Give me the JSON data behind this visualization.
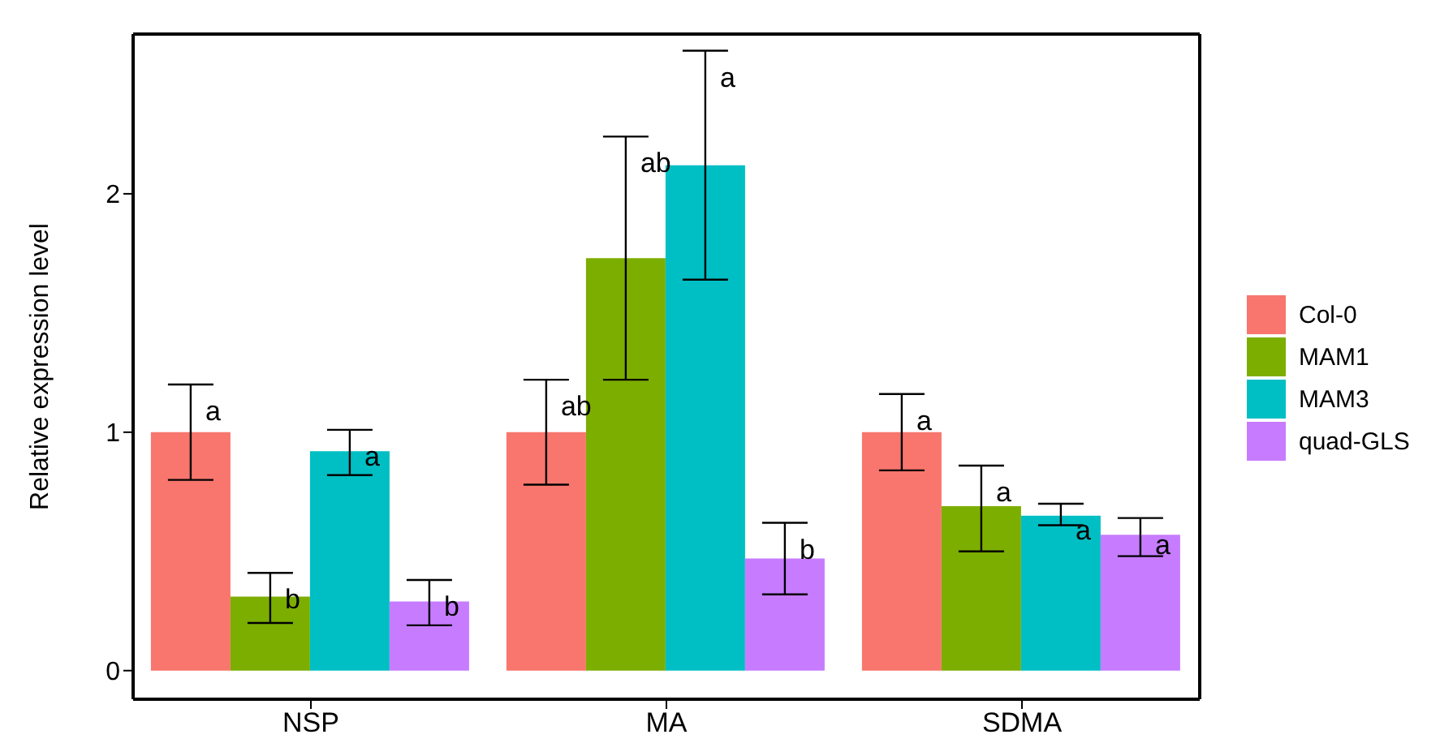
{
  "chart_data": {
    "type": "bar",
    "ylabel": "Relative expression level",
    "categories": [
      "NSP",
      "MA",
      "SDMA"
    ],
    "series": [
      {
        "name": "Col-0",
        "color": "#f8766d",
        "values": [
          1.0,
          1.0,
          1.0
        ],
        "errors": [
          [
            0.8,
            1.2
          ],
          [
            0.78,
            1.22
          ],
          [
            0.84,
            1.16
          ]
        ],
        "value_labels": [
          "a",
          "ab",
          "a"
        ]
      },
      {
        "name": "MAM1",
        "color": "#7cae00",
        "values": [
          0.31,
          1.73,
          0.69
        ],
        "errors": [
          [
            0.2,
            0.41
          ],
          [
            1.22,
            2.24
          ],
          [
            0.5,
            0.86
          ]
        ],
        "value_labels": [
          "b",
          "ab",
          "a"
        ]
      },
      {
        "name": "MAM3",
        "color": "#00bfc4",
        "values": [
          0.92,
          2.12,
          0.65
        ],
        "errors": [
          [
            0.82,
            1.01
          ],
          [
            1.64,
            2.6
          ],
          [
            0.61,
            0.7
          ]
        ],
        "value_labels": [
          "a",
          "a",
          "a"
        ]
      },
      {
        "name": "quad-GLS",
        "color": "#c77cff",
        "values": [
          0.29,
          0.47,
          0.57
        ],
        "errors": [
          [
            0.19,
            0.38
          ],
          [
            0.32,
            0.62
          ],
          [
            0.48,
            0.64
          ]
        ],
        "value_labels": [
          "b",
          "b",
          "a"
        ]
      }
    ],
    "ylim": [
      -0.12,
      2.67
    ],
    "yticks": [
      0,
      1,
      2
    ],
    "grid": false,
    "legend": "right"
  }
}
